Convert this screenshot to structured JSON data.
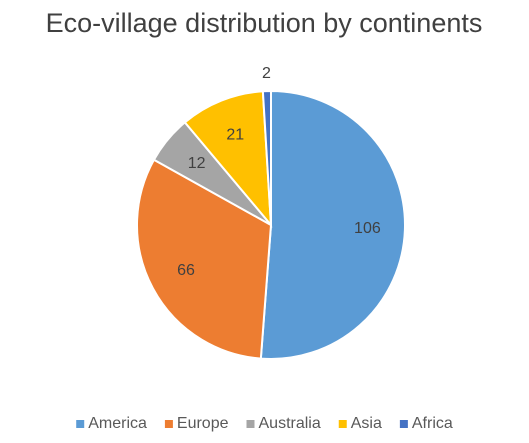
{
  "chart_data": {
    "type": "pie",
    "title": "Eco-village distribution by continents",
    "categories": [
      "America",
      "Europe",
      "Australia",
      "Asia",
      "Africa"
    ],
    "values": [
      106,
      66,
      12,
      21,
      2
    ],
    "colors": [
      "#5b9bd5",
      "#ed7d31",
      "#a5a5a5",
      "#ffc000",
      "#4472c4"
    ],
    "legend": "bottom"
  }
}
